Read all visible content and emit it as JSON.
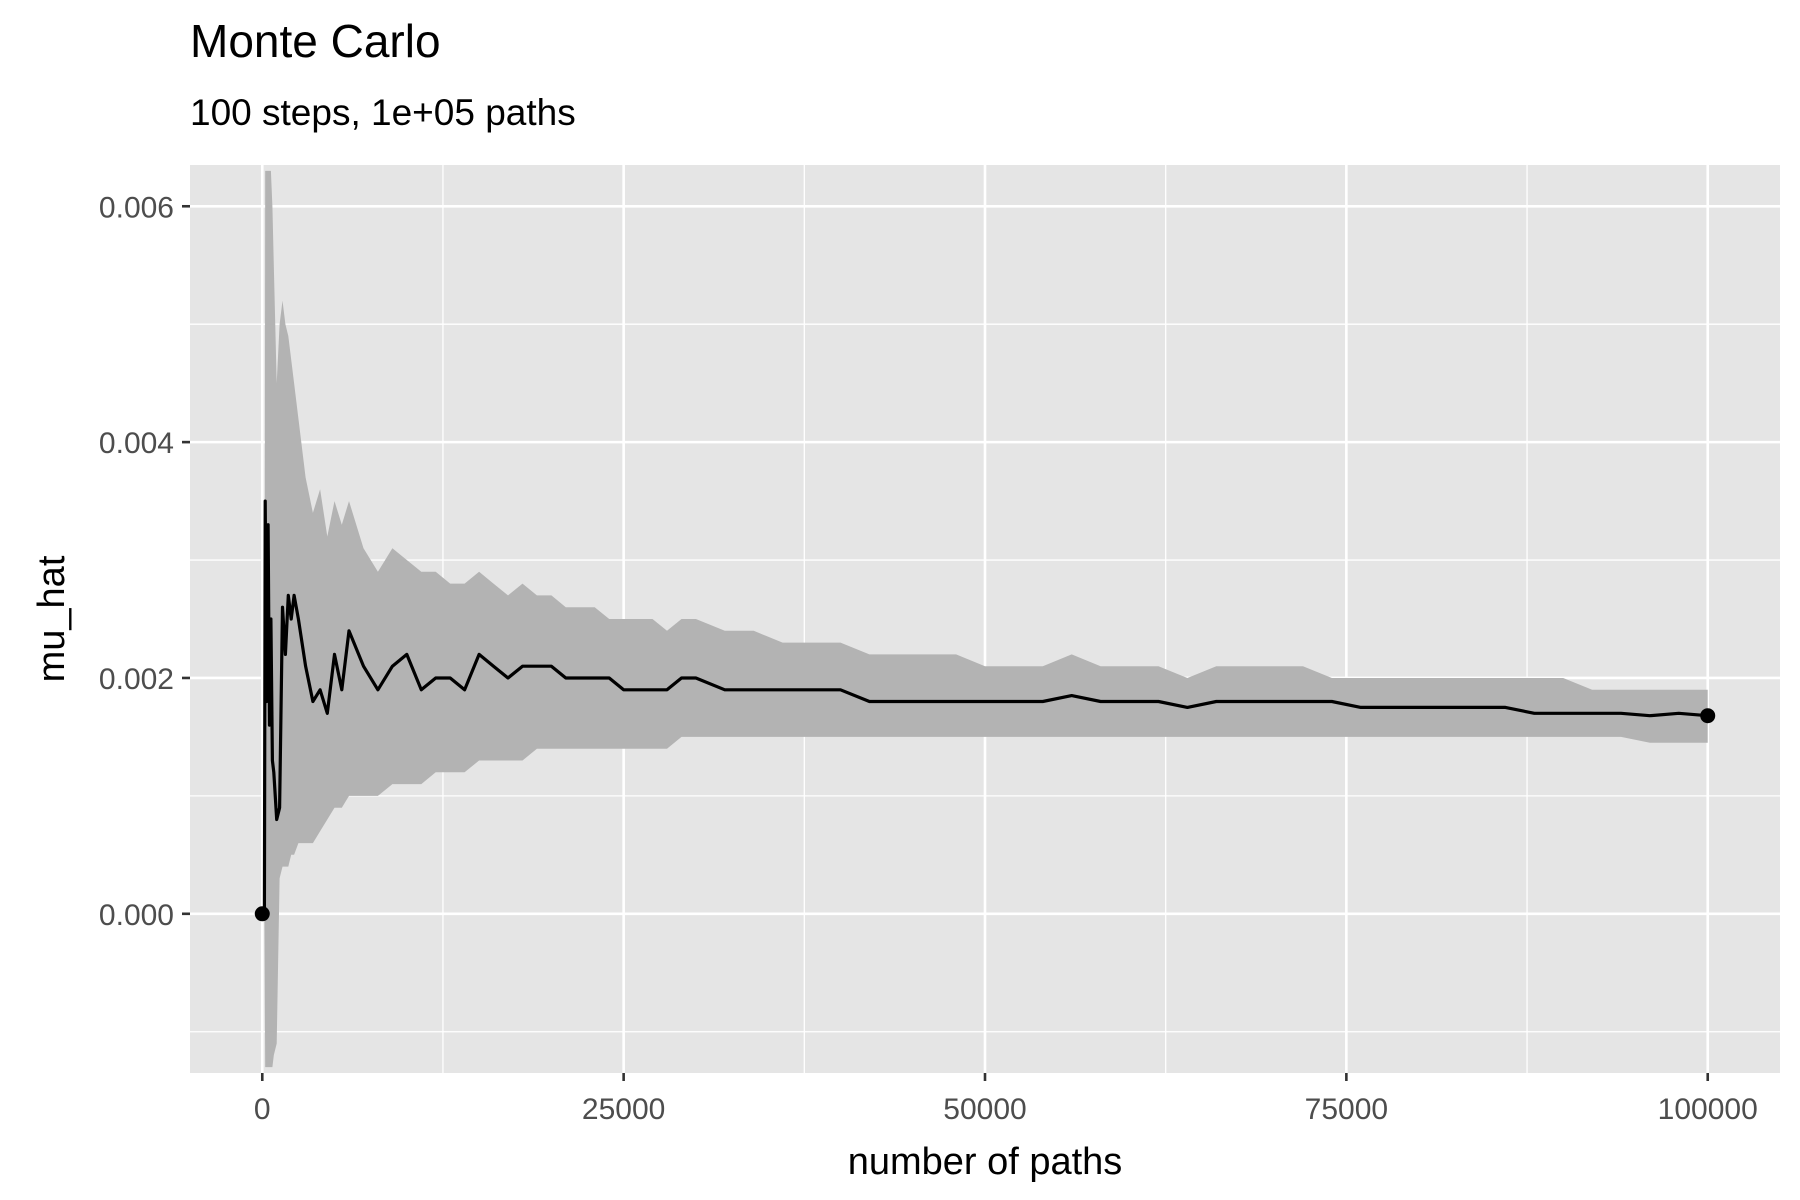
{
  "chart_data": {
    "type": "line",
    "title": "Monte Carlo",
    "subtitle": "100 steps, 1e+05 paths",
    "xlabel": "number of paths",
    "ylabel": "mu_hat",
    "xlim": [
      -5000,
      105000
    ],
    "ylim": [
      -0.00135,
      0.00635
    ],
    "x_ticks": [
      0,
      25000,
      50000,
      75000,
      100000
    ],
    "x_tick_labels": [
      "0",
      "25000",
      "50000",
      "75000",
      "100000"
    ],
    "y_ticks": [
      0,
      0.002,
      0.004,
      0.006
    ],
    "y_tick_labels": [
      "0.000",
      "0.002",
      "0.004",
      "0.006"
    ],
    "grid": true,
    "colors": {
      "panel": "#e5e5e5",
      "grid": "#ffffff",
      "band": "#b3b3b3",
      "line": "#000000"
    },
    "series": [
      {
        "x": [
          0,
          150,
          200,
          300,
          400,
          500,
          600,
          700,
          800,
          1000,
          1200,
          1400,
          1600,
          1800,
          2000,
          2200,
          2500,
          3000,
          3500,
          4000,
          4500,
          5000,
          5500,
          6000,
          7000,
          8000,
          9000,
          10000,
          11000,
          12000,
          13000,
          14000,
          15000,
          16000,
          17000,
          18000,
          19000,
          20000,
          21000,
          22000,
          23000,
          24000,
          25000,
          26000,
          27000,
          28000,
          29000,
          30000,
          32000,
          34000,
          36000,
          38000,
          40000,
          42000,
          44000,
          46000,
          48000,
          50000,
          52000,
          54000,
          56000,
          58000,
          60000,
          62000,
          64000,
          66000,
          68000,
          70000,
          72000,
          74000,
          76000,
          78000,
          80000,
          82000,
          84000,
          86000,
          88000,
          90000,
          92000,
          94000,
          96000,
          98000,
          100000
        ],
        "y": [
          0,
          0,
          0.0035,
          0.0018,
          0.0033,
          0.0016,
          0.0025,
          0.0013,
          0.0012,
          0.0008,
          0.0009,
          0.0026,
          0.0022,
          0.0027,
          0.0025,
          0.0027,
          0.0025,
          0.0021,
          0.0018,
          0.0019,
          0.0017,
          0.0022,
          0.0019,
          0.0024,
          0.0021,
          0.0019,
          0.0021,
          0.0022,
          0.0019,
          0.002,
          0.002,
          0.0019,
          0.0022,
          0.0021,
          0.002,
          0.0021,
          0.0021,
          0.0021,
          0.002,
          0.002,
          0.002,
          0.002,
          0.0019,
          0.0019,
          0.0019,
          0.0019,
          0.002,
          0.002,
          0.0019,
          0.0019,
          0.0019,
          0.0019,
          0.0019,
          0.0018,
          0.0018,
          0.0018,
          0.0018,
          0.0018,
          0.0018,
          0.0018,
          0.00185,
          0.0018,
          0.0018,
          0.0018,
          0.00175,
          0.0018,
          0.0018,
          0.0018,
          0.0018,
          0.0018,
          0.00175,
          0.00175,
          0.00175,
          0.00175,
          0.00175,
          0.00175,
          0.0017,
          0.0017,
          0.0017,
          0.0017,
          0.00168,
          0.0017,
          0.00168
        ],
        "lower": [
          0,
          0,
          -0.0013,
          -0.0013,
          -0.0013,
          -0.0013,
          -0.0013,
          -0.0013,
          -0.0012,
          -0.0011,
          0.0003,
          0.0004,
          0.0004,
          0.0004,
          0.0005,
          0.0005,
          0.0006,
          0.0006,
          0.0006,
          0.0007,
          0.0008,
          0.0009,
          0.0009,
          0.001,
          0.001,
          0.001,
          0.0011,
          0.0011,
          0.0011,
          0.0012,
          0.0012,
          0.0012,
          0.0013,
          0.0013,
          0.0013,
          0.0013,
          0.0014,
          0.0014,
          0.0014,
          0.0014,
          0.0014,
          0.0014,
          0.0014,
          0.0014,
          0.0014,
          0.0014,
          0.0015,
          0.0015,
          0.0015,
          0.0015,
          0.0015,
          0.0015,
          0.0015,
          0.0015,
          0.0015,
          0.0015,
          0.0015,
          0.0015,
          0.0015,
          0.0015,
          0.0015,
          0.0015,
          0.0015,
          0.0015,
          0.0015,
          0.0015,
          0.0015,
          0.0015,
          0.0015,
          0.0015,
          0.0015,
          0.0015,
          0.0015,
          0.0015,
          0.0015,
          0.0015,
          0.0015,
          0.0015,
          0.0015,
          0.0015,
          0.00145,
          0.00145,
          0.00145
        ],
        "upper": [
          0,
          0,
          0.0063,
          0.0063,
          0.0063,
          0.0063,
          0.0063,
          0.006,
          0.0055,
          0.0045,
          0.005,
          0.0052,
          0.005,
          0.0049,
          0.0047,
          0.0045,
          0.0042,
          0.0037,
          0.0034,
          0.0036,
          0.0032,
          0.0035,
          0.0033,
          0.0035,
          0.0031,
          0.0029,
          0.0031,
          0.003,
          0.0029,
          0.0029,
          0.0028,
          0.0028,
          0.0029,
          0.0028,
          0.0027,
          0.0028,
          0.0027,
          0.0027,
          0.0026,
          0.0026,
          0.0026,
          0.0025,
          0.0025,
          0.0025,
          0.0025,
          0.0024,
          0.0025,
          0.0025,
          0.0024,
          0.0024,
          0.0023,
          0.0023,
          0.0023,
          0.0022,
          0.0022,
          0.0022,
          0.0022,
          0.0021,
          0.0021,
          0.0021,
          0.0022,
          0.0021,
          0.0021,
          0.0021,
          0.002,
          0.0021,
          0.0021,
          0.0021,
          0.0021,
          0.002,
          0.002,
          0.002,
          0.002,
          0.002,
          0.002,
          0.002,
          0.002,
          0.002,
          0.0019,
          0.0019,
          0.0019,
          0.0019,
          0.0019
        ]
      }
    ],
    "endpoints": [
      {
        "x": 0,
        "y": 0
      },
      {
        "x": 100000,
        "y": 0.00168
      }
    ]
  }
}
